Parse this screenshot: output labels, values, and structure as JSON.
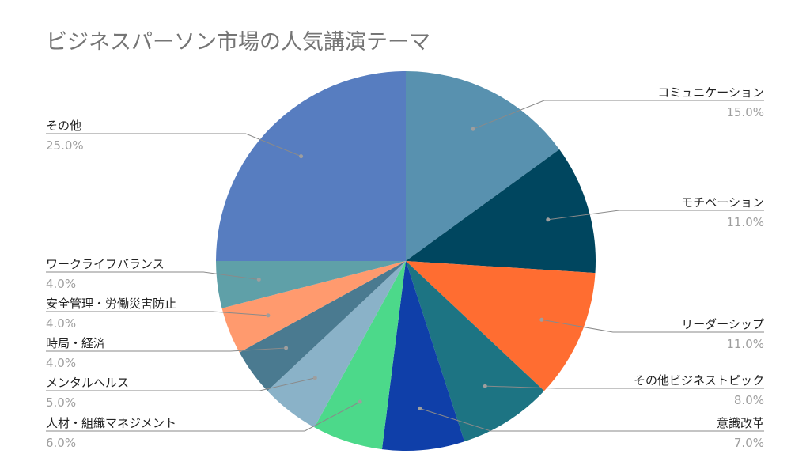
{
  "chart_data": {
    "type": "pie",
    "title": "ビジネスパーソン市場の人気講演テーマ",
    "slices": [
      {
        "label": "コミュニケーション",
        "value": 15.0,
        "display": "15.0%",
        "color": "#5891af"
      },
      {
        "label": "モチベーション",
        "value": 11.0,
        "display": "11.0%",
        "color": "#00465f"
      },
      {
        "label": "リーダーシップ",
        "value": 11.0,
        "display": "11.0%",
        "color": "#ff6d31"
      },
      {
        "label": "その他ビジネストピック",
        "value": 8.0,
        "display": "8.0%",
        "color": "#1d7483"
      },
      {
        "label": "意識改革",
        "value": 7.0,
        "display": "7.0%",
        "color": "#0f3fa9"
      },
      {
        "label": "人材・組織マネジメント",
        "value": 6.0,
        "display": "6.0%",
        "color": "#4cd98a"
      },
      {
        "label": "メンタルヘルス",
        "value": 5.0,
        "display": "5.0%",
        "color": "#8ab2c8"
      },
      {
        "label": "時局・経済",
        "value": 4.0,
        "display": "4.0%",
        "color": "#4a7a90"
      },
      {
        "label": "安全管理・労働災害防止",
        "value": 4.0,
        "display": "4.0%",
        "color": "#ff9a6e"
      },
      {
        "label": "ワークライフバランス",
        "value": 4.0,
        "display": "4.0%",
        "color": "#5fa0a8"
      },
      {
        "label": "その他",
        "value": 25.0,
        "display": "25.0%",
        "color": "#577dc0"
      }
    ],
    "legend": "none"
  }
}
